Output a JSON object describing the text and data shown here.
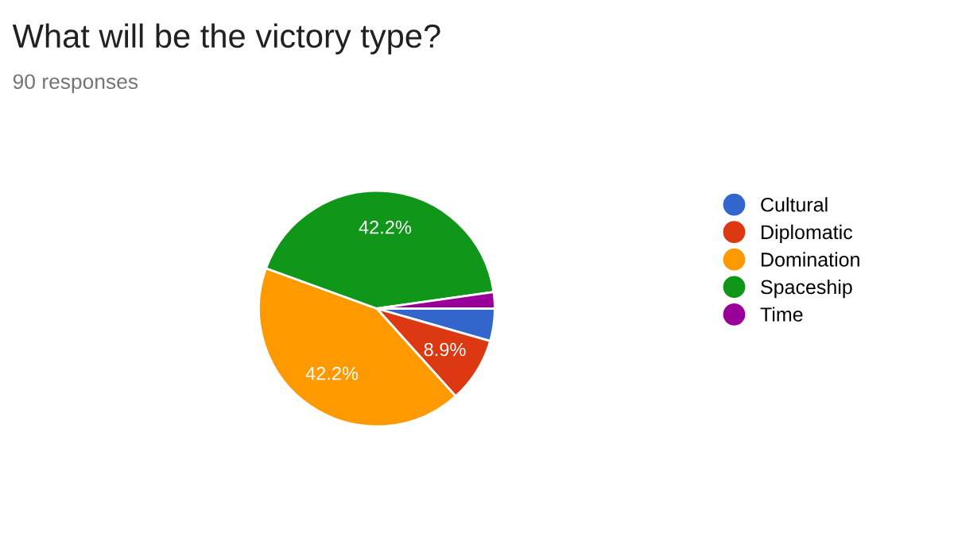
{
  "chart_data": {
    "type": "pie",
    "title": "What will be the victory type?",
    "subtitle": "90 responses",
    "categories": [
      "Cultural",
      "Diplomatic",
      "Domination",
      "Spaceship",
      "Time"
    ],
    "values": [
      4.45,
      8.9,
      42.2,
      42.2,
      2.25
    ],
    "colors": [
      "#3366cc",
      "#dc3912",
      "#ff9900",
      "#109618",
      "#990099"
    ],
    "value_labels": [
      null,
      "8.9%",
      "42.2%",
      "42.2%",
      null
    ],
    "legend": "right"
  }
}
